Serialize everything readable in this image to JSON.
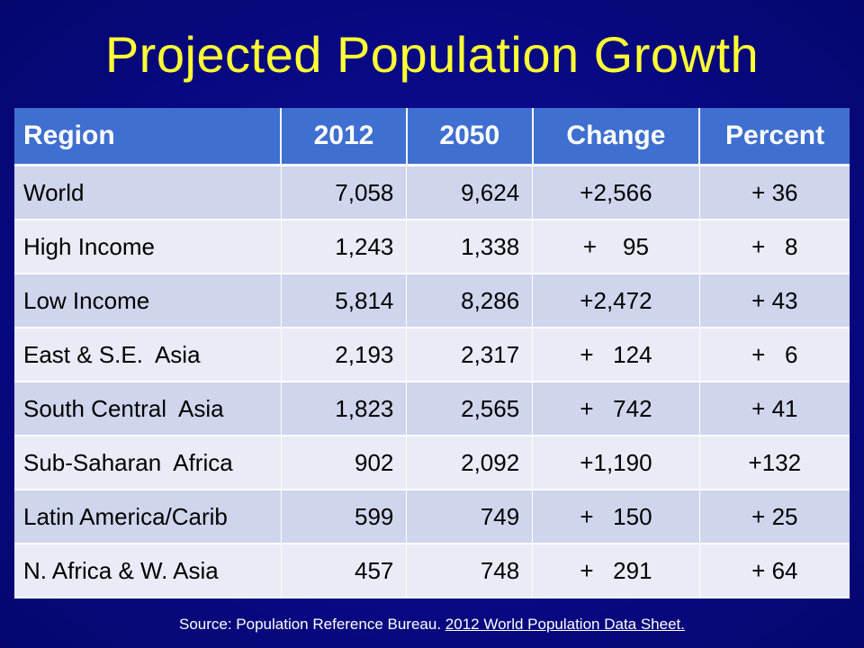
{
  "slide": {
    "title": "Projected Population Growth",
    "source_prefix": "Source: Population Reference Bureau. ",
    "source_link": "2012 World Population Data Sheet."
  },
  "table": {
    "headers": [
      "Region",
      "2012",
      "2050",
      "Change",
      "Percent"
    ],
    "rows": [
      {
        "region": "World",
        "y2012": "7,058",
        "y2050": "9,624",
        "change": "+2,566",
        "percent": "+ 36"
      },
      {
        "region": "High Income",
        "y2012": "1,243",
        "y2050": "1,338",
        "change": "+    95",
        "percent": "+   8"
      },
      {
        "region": "Low Income",
        "y2012": "5,814",
        "y2050": "8,286",
        "change": "+2,472",
        "percent": "+ 43"
      },
      {
        "region": "East & S.E.  Asia",
        "y2012": "2,193",
        "y2050": "2,317",
        "change": "+   124",
        "percent": "+   6"
      },
      {
        "region": "South Central  Asia",
        "y2012": "1,823",
        "y2050": "2,565",
        "change": "+   742",
        "percent": "+ 41"
      },
      {
        "region": "Sub-Saharan  Africa",
        "y2012": "902",
        "y2050": "2,092",
        "change": "+1,190",
        "percent": "+132"
      },
      {
        "region": "Latin America/Carib",
        "y2012": "599",
        "y2050": "749",
        "change": "+   150",
        "percent": "+ 25"
      },
      {
        "region": "N. Africa & W. Asia",
        "y2012": "457",
        "y2050": "748",
        "change": "+   291",
        "percent": "+ 64"
      }
    ]
  },
  "colors": {
    "background": "#0a0a8c",
    "title": "#ffff33",
    "header": "#3f6fd0",
    "row_odd": "#cfd5ec",
    "row_even": "#e9ebf6"
  }
}
